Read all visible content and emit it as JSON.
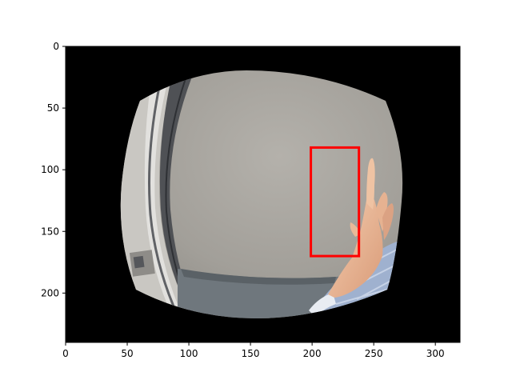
{
  "axes": {
    "x_ticks": [
      "0",
      "50",
      "100",
      "150",
      "200",
      "250",
      "300"
    ],
    "y_ticks": [
      "0",
      "50",
      "100",
      "150",
      "200"
    ],
    "xlim": [
      0,
      320
    ],
    "ylim": [
      240,
      0
    ],
    "y_inverted": true
  },
  "image": {
    "description_tag": "fisheye-camera-frame",
    "background_color": "#000000"
  },
  "annotation": {
    "box": {
      "x_min": 199,
      "y_min": 82,
      "x_max": 238,
      "y_max": 170,
      "color": "#ff0000"
    }
  }
}
